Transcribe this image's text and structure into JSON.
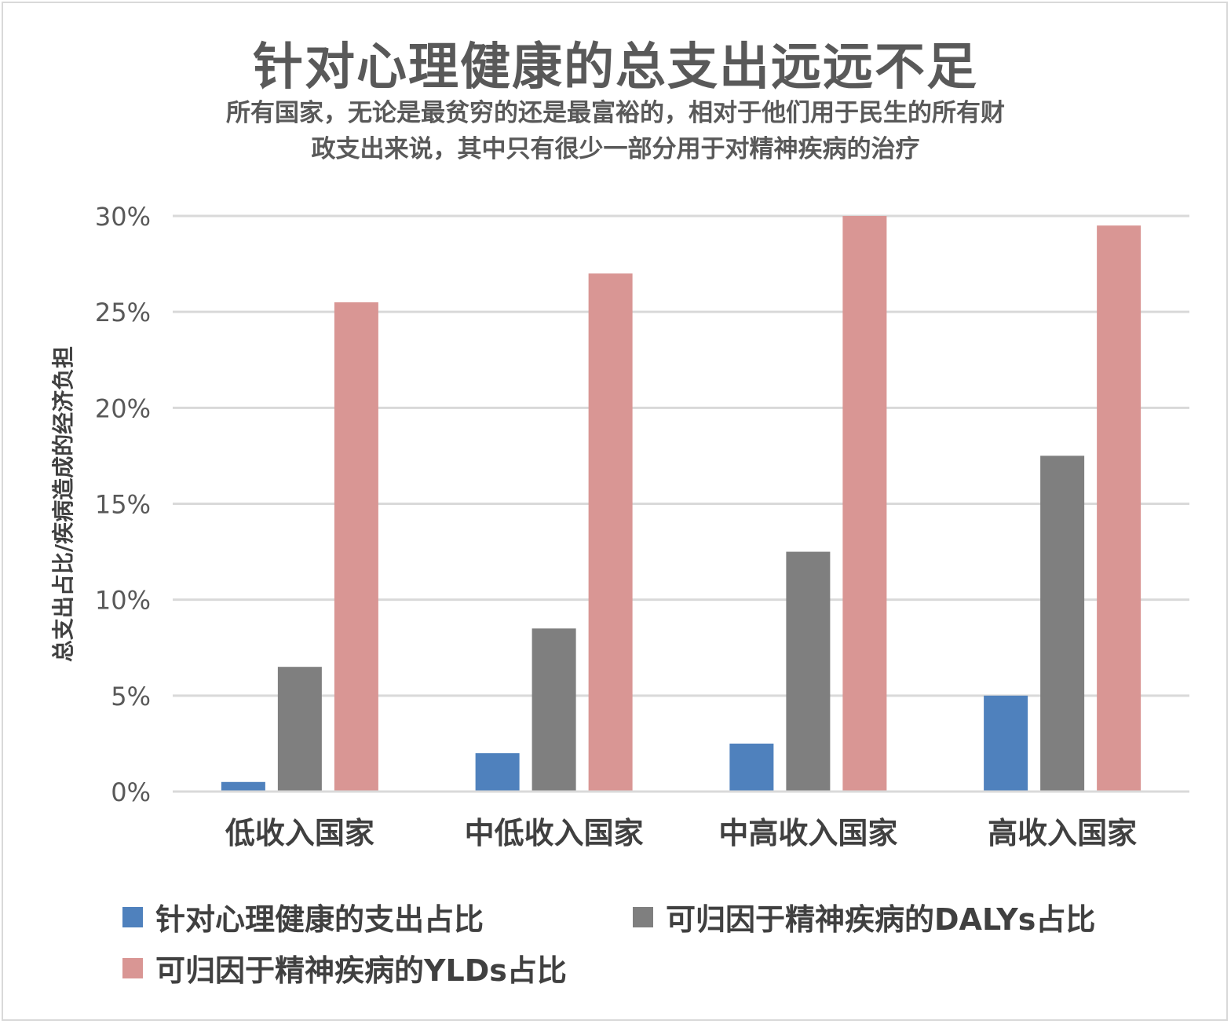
{
  "title": "针对心理健康的总支出远远不足",
  "subtitle_line1": "所有国家，无论是最贫穷的还是最富裕的，相对于他们用于民生的所有财",
  "subtitle_line2": "政支出来说，其中只有很少一部分用于对精神疾病的治疗",
  "chart_data": {
    "type": "bar",
    "ylabel": "总支出占比/疾病造成的经济负担",
    "xlabel": "",
    "ylim": [
      0,
      30
    ],
    "yticks": [
      0,
      5,
      10,
      15,
      20,
      25,
      30
    ],
    "ytick_labels": [
      "0%",
      "5%",
      "10%",
      "15%",
      "20%",
      "25%",
      "30%"
    ],
    "grid": true,
    "legend_position": "bottom",
    "categories": [
      "低收入国家",
      "中低收入国家",
      "中高收入国家",
      "高收入国家"
    ],
    "series": [
      {
        "name": "针对心理健康的支出占比",
        "color": "#4f81bd",
        "values": [
          0.5,
          2.0,
          2.5,
          5.0
        ]
      },
      {
        "name": "可归因于精神疾病的DALYs占比",
        "color": "#7f7f7f",
        "values": [
          6.5,
          8.5,
          12.5,
          17.5
        ]
      },
      {
        "name": "可归因于精神疾病的YLDs占比",
        "color": "#d99694",
        "values": [
          25.5,
          27.0,
          30.0,
          29.5
        ]
      }
    ]
  }
}
